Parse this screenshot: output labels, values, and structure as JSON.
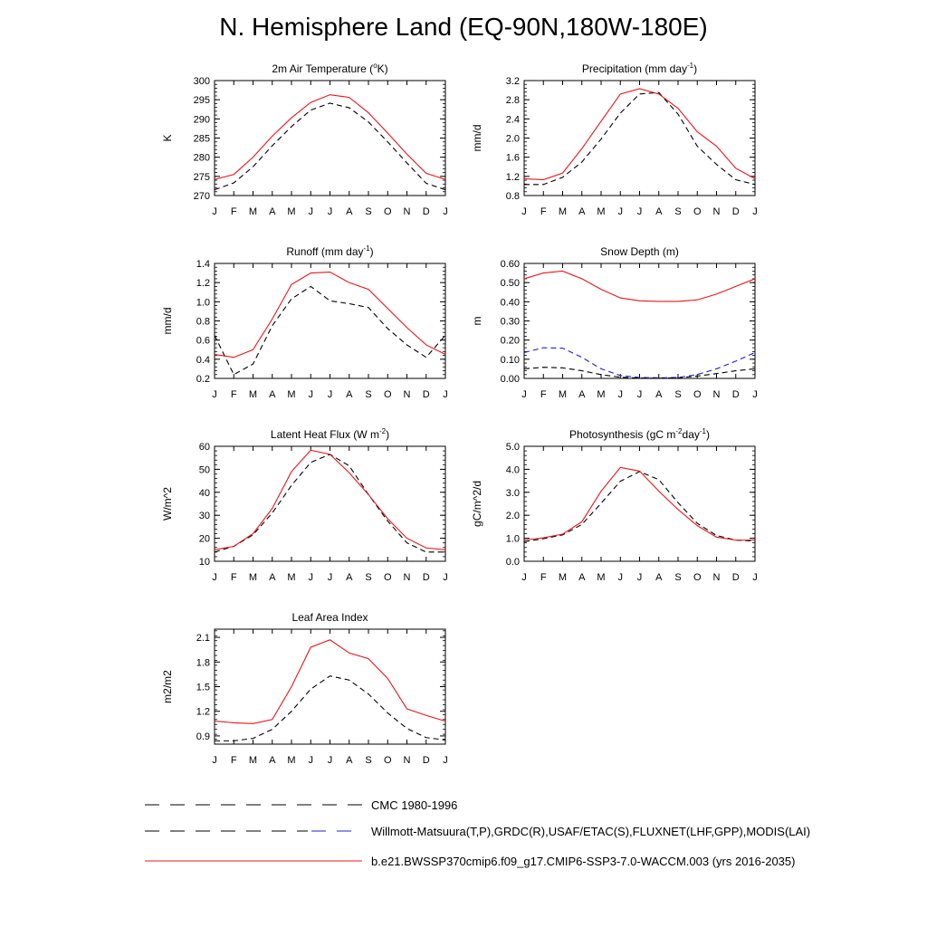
{
  "title": "N. Hemisphere Land (EQ-90N,180W-180E)",
  "legend": [
    {
      "label": "CMC 1980-1996",
      "style": "dash-black"
    },
    {
      "label": "Willmott-Matsuura(T,P),GRDC(R),USAF/ETAC(S),FLUXNET(LHF,GPP),MODIS(LAI)",
      "style": "dash-black-blue"
    },
    {
      "label": "b.e21.BWSSP370cmip6.f09_g17.CMIP6-SSP3-7.0-WACCM.003 (yrs 2016-2035)",
      "style": "solid-red"
    }
  ],
  "colors": {
    "model": "#e8161b",
    "obs": "#000000",
    "obs_snow": "#1f1fd6"
  },
  "chart_data": [
    {
      "type": "line",
      "title_main": "2m Air Temperature (",
      "title_sup": "o",
      "title_tail": "K)",
      "ylabel": "K",
      "x": [
        "J",
        "F",
        "M",
        "A",
        "M",
        "J",
        "J",
        "A",
        "S",
        "O",
        "N",
        "D",
        "J"
      ],
      "ylim": [
        270,
        300
      ],
      "yticks": [
        270,
        275,
        280,
        285,
        290,
        295,
        300
      ],
      "ytick_labels": [
        "270",
        "275",
        "280",
        "285",
        "290",
        "295",
        "300"
      ],
      "series": [
        {
          "style": "solid-red",
          "values": [
            274.2,
            275.5,
            280.0,
            285.5,
            290.3,
            294.3,
            296.3,
            295.6,
            291.6,
            286.3,
            280.8,
            275.8,
            274.2
          ]
        },
        {
          "style": "dash-black",
          "values": [
            271.5,
            273.3,
            277.5,
            283.0,
            288.0,
            292.3,
            294.1,
            292.9,
            289.2,
            284.0,
            278.5,
            273.2,
            271.5
          ]
        }
      ]
    },
    {
      "type": "line",
      "title_main": "Precipitation (mm day",
      "title_sup": "-1",
      "title_tail": ")",
      "ylabel": "mm/d",
      "x": [
        "J",
        "F",
        "M",
        "A",
        "M",
        "J",
        "J",
        "A",
        "S",
        "O",
        "N",
        "D",
        "J"
      ],
      "ylim": [
        0.8,
        3.2
      ],
      "yticks": [
        0.8,
        1.2,
        1.6,
        2.0,
        2.4,
        2.8,
        3.2
      ],
      "ytick_labels": [
        "0.8",
        "1.2",
        "1.6",
        "2.0",
        "2.4",
        "2.8",
        "3.2"
      ],
      "series": [
        {
          "style": "solid-red",
          "values": [
            1.15,
            1.13,
            1.27,
            1.78,
            2.35,
            2.92,
            3.03,
            2.92,
            2.62,
            2.13,
            1.83,
            1.37,
            1.15
          ]
        },
        {
          "style": "dash-black",
          "values": [
            1.03,
            1.03,
            1.18,
            1.5,
            1.98,
            2.52,
            2.92,
            2.95,
            2.5,
            1.83,
            1.45,
            1.13,
            1.03
          ]
        }
      ]
    },
    {
      "type": "line",
      "title_main": "Runoff (mm day",
      "title_sup": "-1",
      "title_tail": ")",
      "ylabel": "mm/d",
      "x": [
        "J",
        "F",
        "M",
        "A",
        "M",
        "J",
        "J",
        "A",
        "S",
        "O",
        "N",
        "D",
        "J"
      ],
      "ylim": [
        0.2,
        1.4
      ],
      "yticks": [
        0.2,
        0.4,
        0.6,
        0.8,
        1.0,
        1.2,
        1.4
      ],
      "ytick_labels": [
        "0.2",
        "0.4",
        "0.6",
        "0.8",
        "1.0",
        "1.2",
        "1.4"
      ],
      "series": [
        {
          "style": "solid-red",
          "values": [
            0.45,
            0.42,
            0.5,
            0.82,
            1.18,
            1.3,
            1.31,
            1.2,
            1.13,
            0.93,
            0.73,
            0.55,
            0.45
          ]
        },
        {
          "style": "dash-black",
          "values": [
            0.65,
            0.24,
            0.35,
            0.75,
            1.03,
            1.16,
            1.01,
            0.98,
            0.94,
            0.72,
            0.55,
            0.42,
            0.65
          ]
        }
      ]
    },
    {
      "type": "line",
      "title_main": "Snow Depth (m)",
      "title_sup": "",
      "title_tail": "",
      "ylabel": "m",
      "x": [
        "J",
        "F",
        "M",
        "A",
        "M",
        "J",
        "J",
        "A",
        "S",
        "O",
        "N",
        "D",
        "J"
      ],
      "ylim": [
        0.0,
        0.6
      ],
      "yticks": [
        0.0,
        0.1,
        0.2,
        0.3,
        0.4,
        0.5,
        0.6
      ],
      "ytick_labels": [
        "0.00",
        "0.10",
        "0.20",
        "0.30",
        "0.40",
        "0.50",
        "0.60"
      ],
      "series": [
        {
          "style": "solid-red",
          "values": [
            0.52,
            0.55,
            0.56,
            0.52,
            0.465,
            0.42,
            0.405,
            0.402,
            0.402,
            0.41,
            0.44,
            0.48,
            0.52
          ]
        },
        {
          "style": "dash-blue",
          "values": [
            0.135,
            0.16,
            0.158,
            0.11,
            0.05,
            0.015,
            0.005,
            0.003,
            0.005,
            0.02,
            0.05,
            0.09,
            0.135
          ]
        },
        {
          "style": "dash-black",
          "values": [
            0.05,
            0.058,
            0.055,
            0.04,
            0.02,
            0.006,
            0.002,
            0.001,
            0.003,
            0.012,
            0.025,
            0.04,
            0.05
          ]
        }
      ]
    },
    {
      "type": "line",
      "title_main": "Latent Heat Flux (W m",
      "title_sup": "-2",
      "title_tail": ")",
      "ylabel": "W/m^2",
      "x": [
        "J",
        "F",
        "M",
        "A",
        "M",
        "J",
        "J",
        "A",
        "S",
        "O",
        "N",
        "D",
        "J"
      ],
      "ylim": [
        10,
        60
      ],
      "yticks": [
        10,
        20,
        30,
        40,
        50,
        60
      ],
      "ytick_labels": [
        "10",
        "20",
        "30",
        "40",
        "50",
        "60"
      ],
      "series": [
        {
          "style": "solid-red",
          "values": [
            15.0,
            16.5,
            22.0,
            33.0,
            49.0,
            58.3,
            56.5,
            48.5,
            39.0,
            28.5,
            20.0,
            15.8,
            15.0
          ]
        },
        {
          "style": "dash-black",
          "values": [
            14.0,
            16.5,
            21.5,
            31.0,
            43.0,
            53.0,
            56.5,
            51.5,
            39.0,
            27.5,
            18.0,
            14.0,
            14.0
          ]
        }
      ]
    },
    {
      "type": "line",
      "title_main": "Photosynthesis (gC m",
      "title_sup": "-2",
      "title_tail": "day",
      "title_sup2": "-1",
      "title_tail2": ")",
      "ylabel": "gC/m^2/d",
      "x": [
        "J",
        "F",
        "M",
        "A",
        "M",
        "J",
        "J",
        "A",
        "S",
        "O",
        "N",
        "D",
        "J"
      ],
      "ylim": [
        0.0,
        5.0
      ],
      "yticks": [
        0.0,
        1.0,
        2.0,
        3.0,
        4.0,
        5.0
      ],
      "ytick_labels": [
        "0.0",
        "1.0",
        "2.0",
        "3.0",
        "4.0",
        "5.0"
      ],
      "series": [
        {
          "style": "solid-red",
          "values": [
            0.92,
            1.02,
            1.18,
            1.72,
            3.05,
            4.08,
            3.92,
            3.05,
            2.25,
            1.55,
            1.05,
            0.92,
            0.92
          ]
        },
        {
          "style": "dash-black",
          "values": [
            0.85,
            0.98,
            1.15,
            1.6,
            2.52,
            3.48,
            3.9,
            3.55,
            2.55,
            1.65,
            1.12,
            0.92,
            0.88
          ]
        }
      ]
    },
    {
      "type": "line",
      "title_main": "Leaf Area Index",
      "title_sup": "",
      "title_tail": "",
      "ylabel": "m2/m2",
      "x": [
        "J",
        "F",
        "M",
        "A",
        "M",
        "J",
        "J",
        "A",
        "S",
        "O",
        "N",
        "D",
        "J"
      ],
      "ylim": [
        0.8,
        2.2
      ],
      "yticks": [
        0.9,
        1.2,
        1.5,
        1.8,
        2.1
      ],
      "ytick_labels": [
        "0.9",
        "1.2",
        "1.5",
        "1.8",
        "2.1"
      ],
      "series": [
        {
          "style": "solid-red",
          "values": [
            1.08,
            1.06,
            1.05,
            1.1,
            1.5,
            1.98,
            2.07,
            1.91,
            1.84,
            1.6,
            1.23,
            1.15,
            1.08
          ]
        },
        {
          "style": "dash-black",
          "values": [
            0.84,
            0.84,
            0.87,
            0.98,
            1.2,
            1.47,
            1.63,
            1.58,
            1.41,
            1.18,
            0.99,
            0.88,
            0.85
          ]
        }
      ]
    }
  ]
}
